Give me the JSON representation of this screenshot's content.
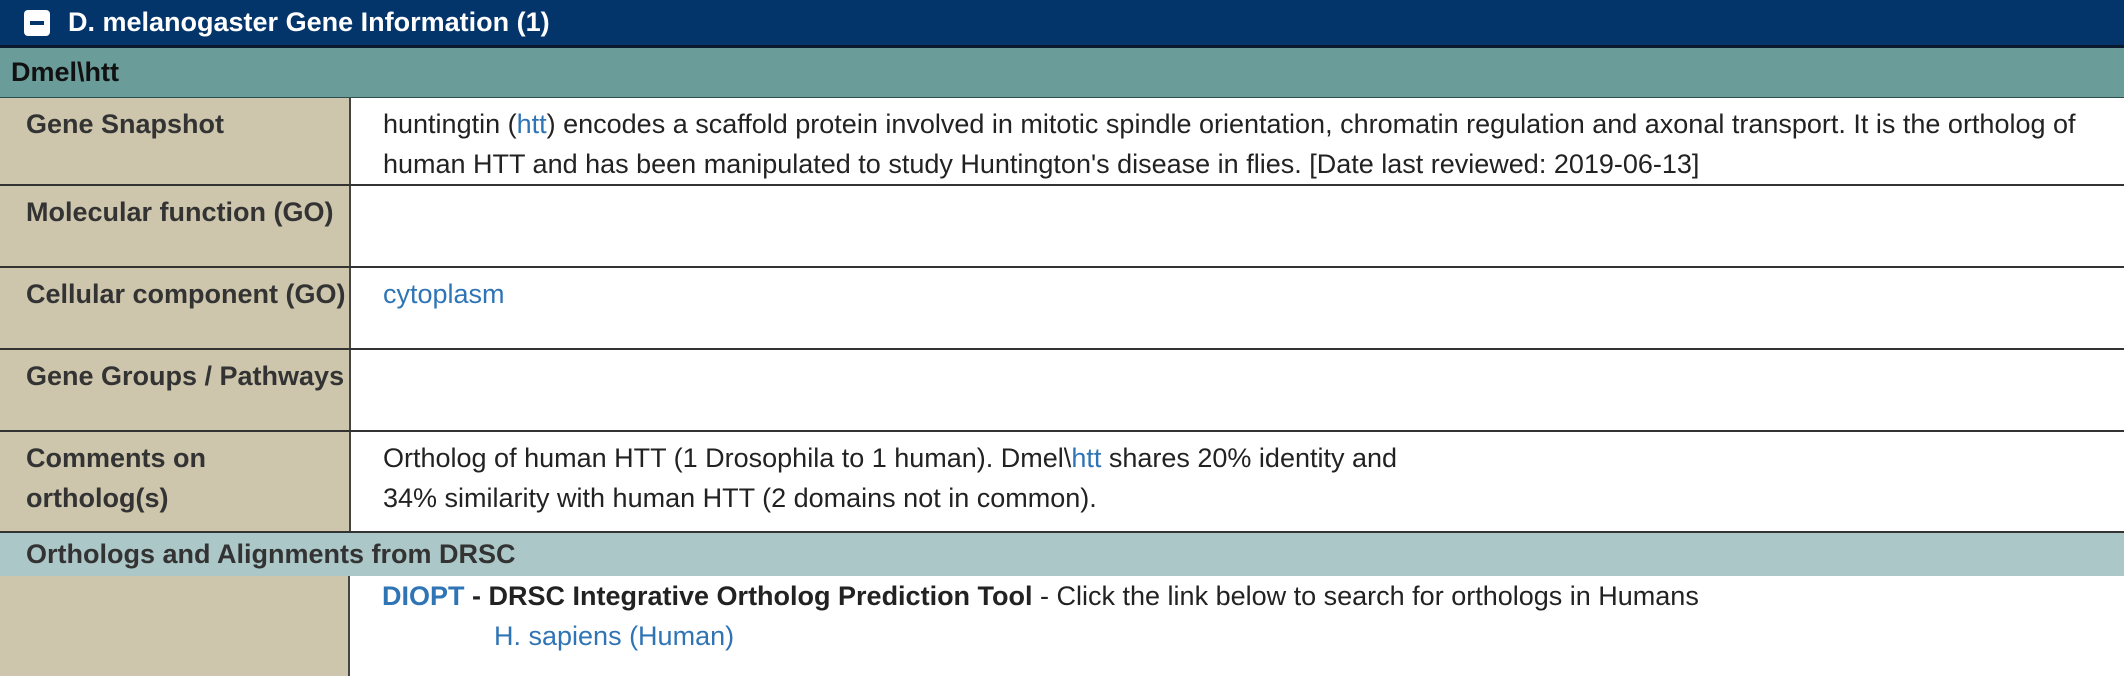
{
  "header": {
    "title": "D. melanogaster Gene Information (1)"
  },
  "gene": {
    "name": "Dmel\\htt"
  },
  "rows": {
    "snapshot": {
      "label": "Gene Snapshot",
      "prefix": "huntingtin (",
      "link": "htt",
      "suffix": ") encodes a scaffold protein involved in mitotic spindle orientation, chromatin regulation and axonal transport. It is the ortholog of human HTT and has been manipulated to study Huntington's disease in flies. [Date last reviewed: 2019-06-13]"
    },
    "molecular": {
      "label": "Molecular function (GO)",
      "value": ""
    },
    "cellular": {
      "label": "Cellular component (GO)",
      "link": "cytoplasm"
    },
    "groups": {
      "label": "Gene Groups / Pathways",
      "value": ""
    },
    "comments": {
      "label": "Comments on ortholog(s)",
      "line1_prefix": "Ortholog of human HTT (1 Drosophila to 1 human). Dmel\\",
      "line1_link": "htt",
      "line1_suffix": " shares 20% identity and",
      "line2": "34% similarity with human HTT (2 domains not in common)."
    }
  },
  "orthologs": {
    "header": "Orthologs and Alignments from DRSC",
    "diopt_link": "DIOPT",
    "tool_name": " - DRSC Integrative Ortholog Prediction Tool",
    "instruction": " - Click the link below to search for orthologs in Humans",
    "human_link": "H. sapiens (Human)"
  }
}
